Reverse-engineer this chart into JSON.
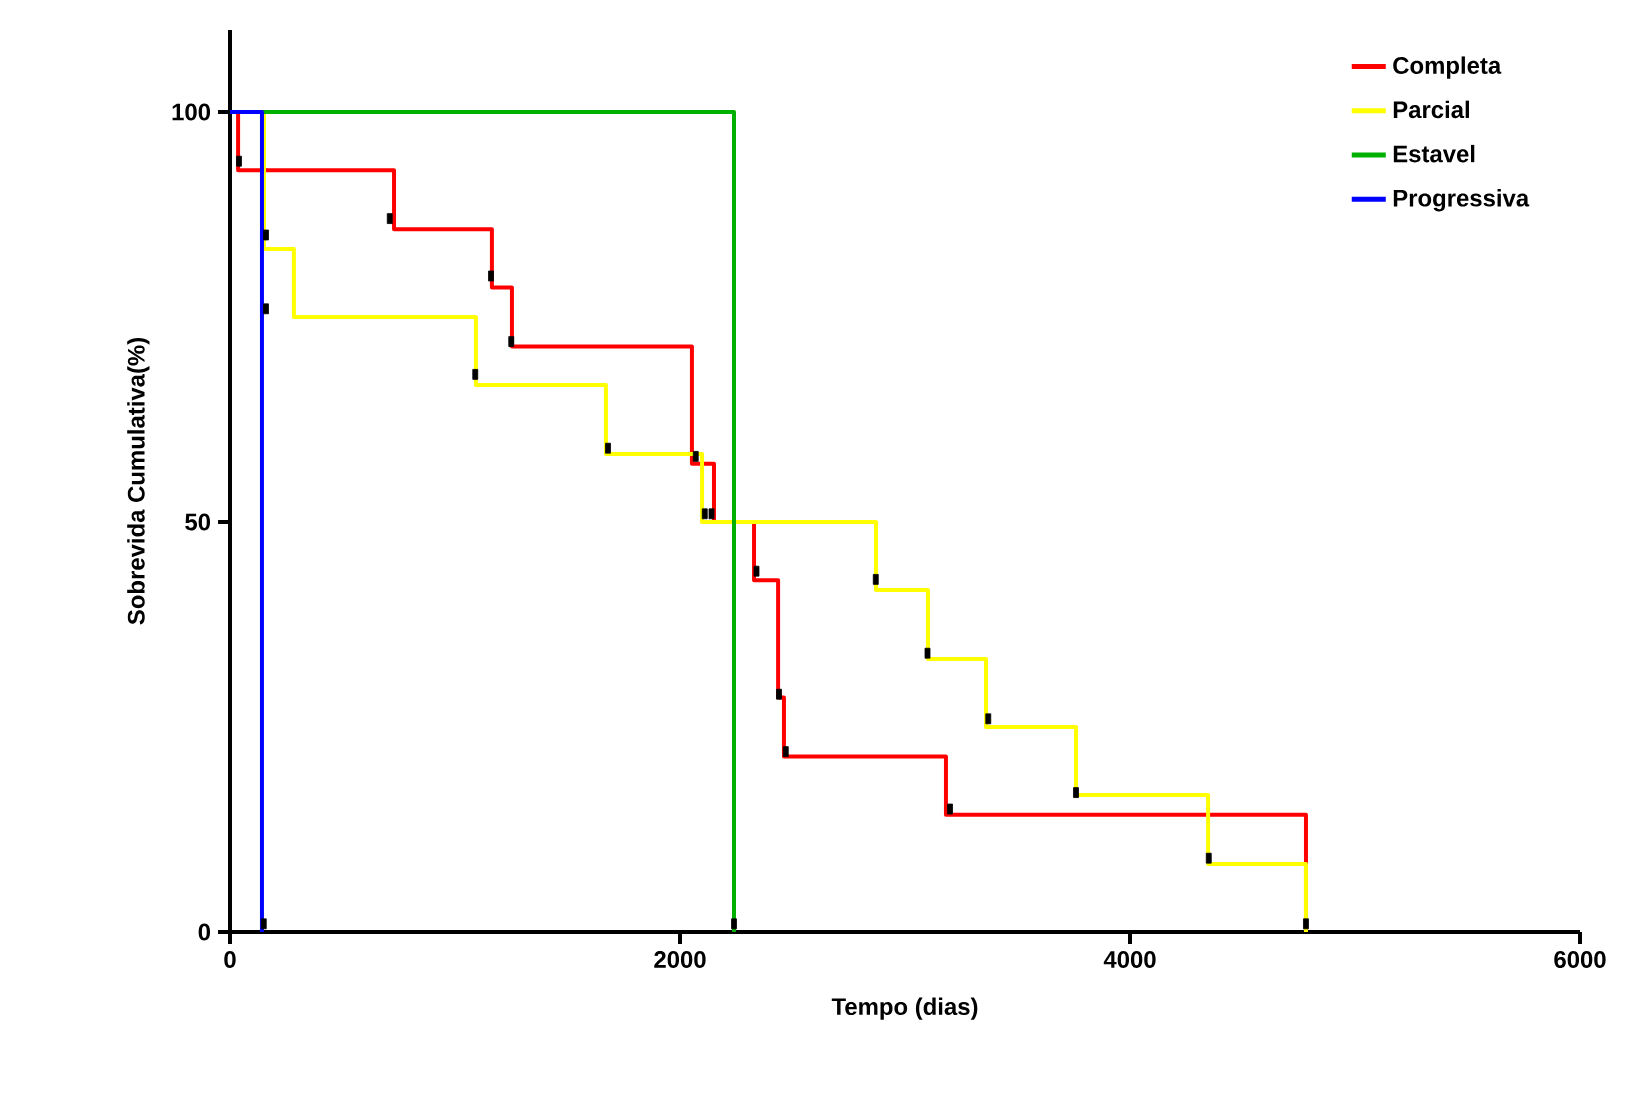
{
  "chart_data": {
    "type": "step",
    "xlabel": "Tempo (dias)",
    "ylabel": "Sobrevida Cumulativa(%)",
    "xlim": [
      0,
      6000
    ],
    "ylim": [
      0,
      110
    ],
    "xticks": [
      0,
      2000,
      4000,
      6000
    ],
    "yticks": [
      0,
      50,
      100
    ],
    "grid": false,
    "legend": "top right",
    "series": [
      {
        "name": "Completa",
        "color": "#ff0000",
        "x": [
          0,
          36,
          729,
          1164,
          1253,
          2053,
          2151,
          2329,
          2436,
          2462,
          3182,
          4782
        ],
        "values": [
          100,
          92.9,
          85.7,
          78.6,
          71.4,
          57.1,
          50,
          42.9,
          28.6,
          21.4,
          14.3,
          0
        ]
      },
      {
        "name": "Parcial",
        "color": "#ffff00",
        "x": [
          0,
          151,
          284,
          1093,
          1671,
          2098,
          2871,
          3102,
          3360,
          3760,
          4347,
          4782
        ],
        "values": [
          100,
          83.3,
          75,
          66.7,
          58.3,
          50,
          41.7,
          33.3,
          25,
          16.7,
          8.3,
          0
        ]
      },
      {
        "name": "Estavel",
        "color": "#00b000",
        "x": [
          0,
          2240
        ],
        "values": [
          100,
          0
        ]
      },
      {
        "name": "Progressiva",
        "color": "#0000ff",
        "x": [
          0,
          142
        ],
        "values": [
          100,
          0
        ]
      },
      {
        "type": "scatter",
        "color": "#000000",
        "x": [
          40,
          160,
          160,
          710,
          1160,
          1250,
          1090,
          1680,
          2070,
          2110,
          2140,
          2340,
          2440,
          2470,
          2870,
          3100,
          3370,
          3200,
          3760,
          4350,
          4782,
          2240,
          150
        ],
        "values": [
          94,
          85,
          76,
          87,
          80,
          72,
          68,
          59,
          58,
          51,
          51,
          44,
          29,
          22,
          43,
          34,
          26,
          15,
          17,
          9,
          1,
          1,
          1
        ]
      }
    ]
  }
}
